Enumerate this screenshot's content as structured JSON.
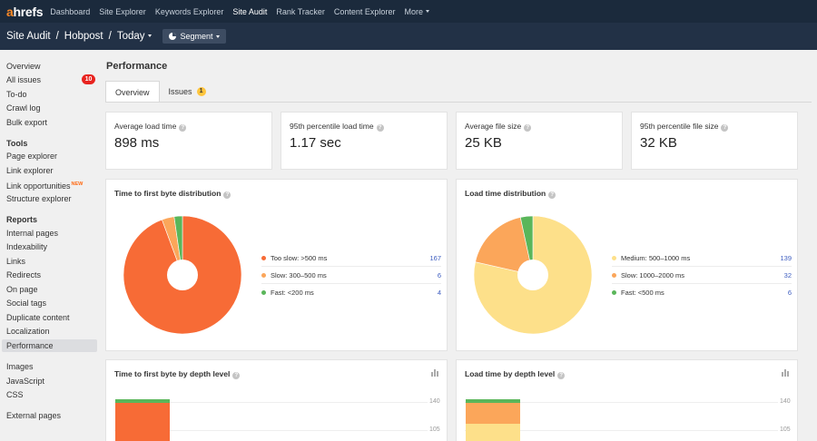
{
  "topnav": {
    "logo_a": "a",
    "logo_rest": "hrefs",
    "items": [
      {
        "label": "Dashboard"
      },
      {
        "label": "Site Explorer"
      },
      {
        "label": "Keywords Explorer"
      },
      {
        "label": "Site Audit"
      },
      {
        "label": "Rank Tracker"
      },
      {
        "label": "Content Explorer"
      },
      {
        "label": "More"
      }
    ]
  },
  "subbar": {
    "crumbs": [
      "Site Audit",
      "Hobpost",
      "Today"
    ],
    "segment_label": "Segment"
  },
  "sidebar": {
    "group1": [
      {
        "label": "Overview"
      },
      {
        "label": "All issues",
        "badge": "10"
      },
      {
        "label": "To-do"
      },
      {
        "label": "Crawl log"
      },
      {
        "label": "Bulk export"
      }
    ],
    "tools_heading": "Tools",
    "tools": [
      {
        "label": "Page explorer"
      },
      {
        "label": "Link explorer"
      },
      {
        "label": "Link opportunities",
        "tag": "NEW"
      },
      {
        "label": "Structure explorer"
      }
    ],
    "reports_heading": "Reports",
    "reports": [
      {
        "label": "Internal pages"
      },
      {
        "label": "Indexability"
      },
      {
        "label": "Links"
      },
      {
        "label": "Redirects"
      },
      {
        "label": "On page"
      },
      {
        "label": "Social tags"
      },
      {
        "label": "Duplicate content"
      },
      {
        "label": "Localization"
      },
      {
        "label": "Performance"
      }
    ],
    "group4": [
      {
        "label": "Images"
      },
      {
        "label": "JavaScript"
      },
      {
        "label": "CSS"
      }
    ],
    "external": "External pages"
  },
  "main": {
    "title": "Performance",
    "tabs": [
      {
        "label": "Overview"
      },
      {
        "label": "Issues",
        "badge": "1"
      }
    ],
    "stats": [
      {
        "label": "Average load time",
        "value": "898 ms"
      },
      {
        "label": "95th percentile load time",
        "value": "1.17 sec"
      },
      {
        "label": "Average file size",
        "value": "25 KB"
      },
      {
        "label": "95th percentile file size",
        "value": "32 KB"
      }
    ],
    "depth_cards": [
      {
        "title": "Time to first byte by depth level",
        "ticks": [
          "140",
          "105"
        ]
      },
      {
        "title": "Load time by depth level",
        "ticks": [
          "140",
          "105"
        ]
      }
    ]
  },
  "chart_data": [
    {
      "type": "pie",
      "title": "Time to first byte distribution",
      "donut": true,
      "slices": [
        {
          "label": "Too slow: >500 ms",
          "value": 167,
          "color": "#f76b36"
        },
        {
          "label": "Slow: 300–500 ms",
          "value": 6,
          "color": "#fba65a"
        },
        {
          "label": "Fast: <200 ms",
          "value": 4,
          "color": "#5ab65a"
        }
      ]
    },
    {
      "type": "pie",
      "title": "Load time distribution",
      "donut": true,
      "slices": [
        {
          "label": "Medium: 500–1000 ms",
          "value": 139,
          "color": "#fde08a"
        },
        {
          "label": "Slow: 1000–2000 ms",
          "value": 32,
          "color": "#fba65a"
        },
        {
          "label": "Fast: <500 ms",
          "value": 6,
          "color": "#5ab65a"
        }
      ]
    }
  ],
  "colors": {
    "topnav_bg": "#1b2a3c",
    "subbar_bg": "#223146",
    "accent_orange": "#ff8a26",
    "badge_red": "#e8231f",
    "link_blue": "#3b5bbf"
  }
}
